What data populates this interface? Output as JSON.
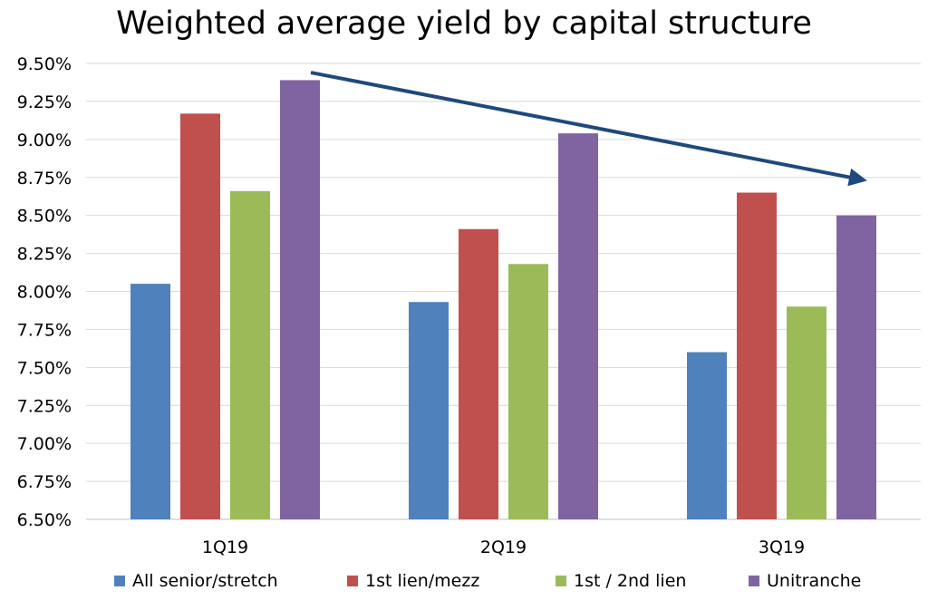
{
  "chart_data": {
    "type": "bar",
    "title": "Weighted average yield by capital structure",
    "categories": [
      "1Q19",
      "2Q19",
      "3Q19"
    ],
    "series": [
      {
        "name": "All senior/stretch",
        "color": "#4F81BD",
        "values": [
          8.05,
          7.93,
          7.6
        ]
      },
      {
        "name": "1st lien/mezz",
        "color": "#C0504D",
        "values": [
          9.17,
          8.41,
          8.65
        ]
      },
      {
        "name": "1st / 2nd lien",
        "color": "#9BBB59",
        "values": [
          8.66,
          8.18,
          7.9
        ]
      },
      {
        "name": "Unitranche",
        "color": "#8064A2",
        "values": [
          9.39,
          9.04,
          8.5
        ]
      }
    ],
    "ylim": [
      6.5,
      9.5
    ],
    "yticks": [
      "6.50%",
      "6.75%",
      "7.00%",
      "7.25%",
      "7.50%",
      "7.75%",
      "8.00%",
      "8.25%",
      "8.50%",
      "8.75%",
      "9.00%",
      "9.25%",
      "9.50%"
    ],
    "grid": true,
    "legend_position": "bottom",
    "trend_arrow": {
      "from": {
        "category": "1Q19",
        "value": 9.44
      },
      "to": {
        "category": "3Q19",
        "value": 8.74
      },
      "color": "#1F497D"
    }
  }
}
